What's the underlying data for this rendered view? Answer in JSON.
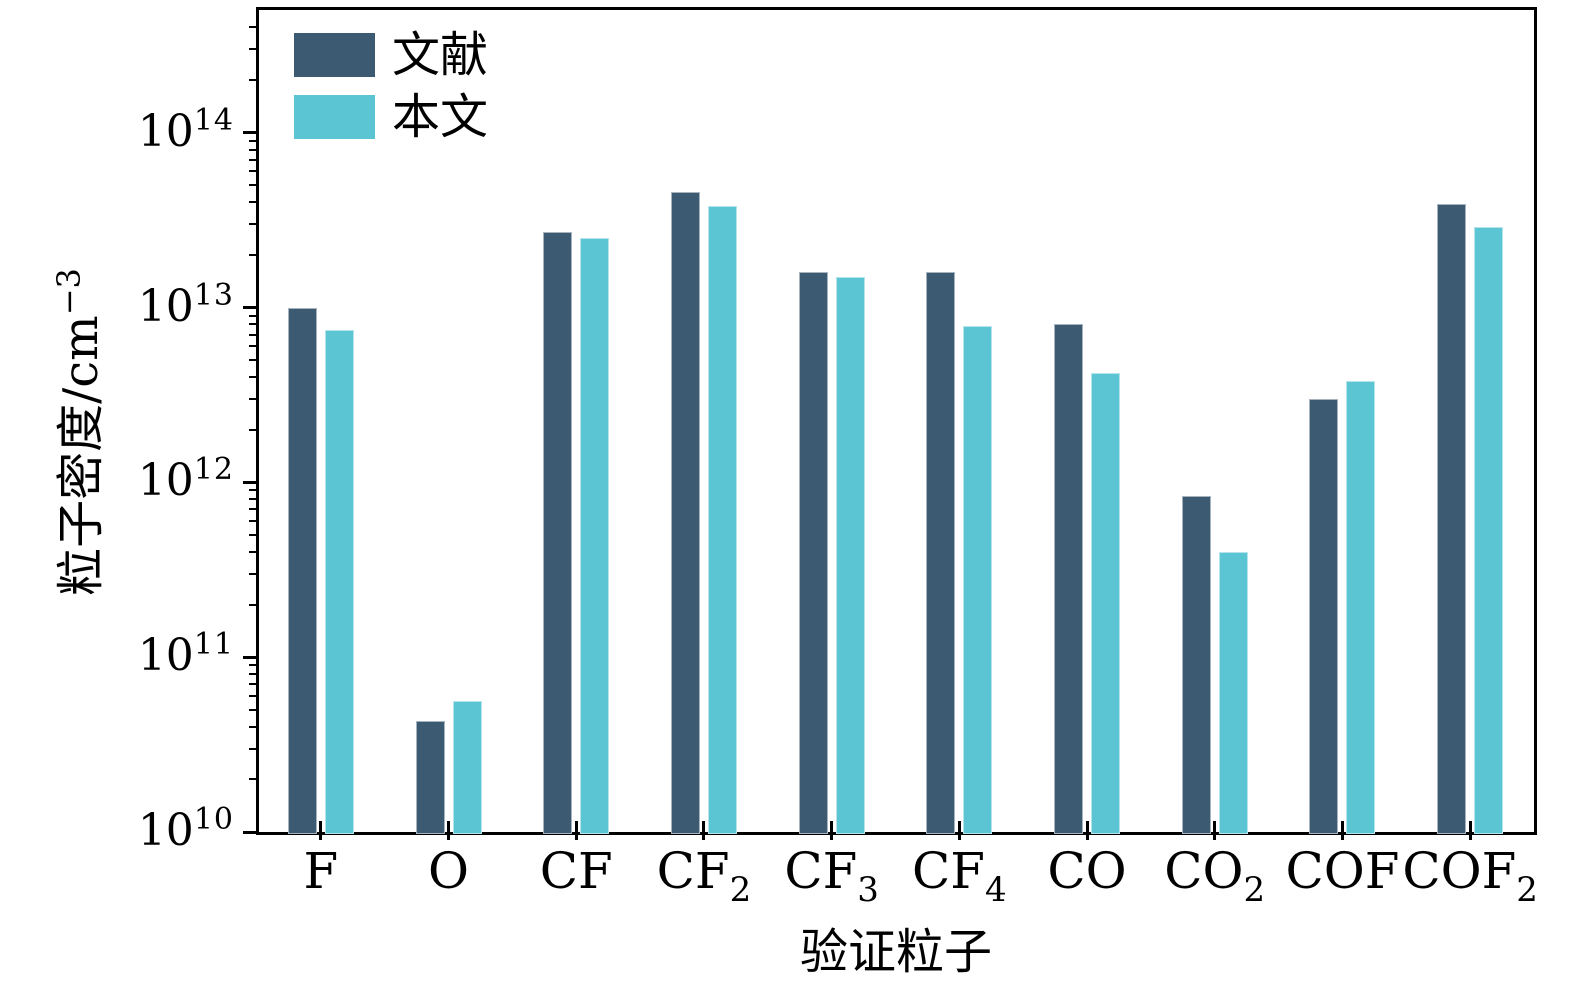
{
  "figure": {
    "ylabel_base": "粒子密度/cm",
    "ylabel_sup": "−3",
    "xlabel": "验证粒子",
    "y_tick_base": "10"
  },
  "legend": [
    {
      "label": "文献",
      "color": "#3d5a73"
    },
    {
      "label": "本文",
      "color": "#5cc5d3"
    }
  ],
  "chart_data": {
    "type": "bar",
    "y_scale": "log",
    "title": "",
    "xlabel": "验证粒子",
    "ylabel": "粒子密度/cm⁻³",
    "categories": [
      "F",
      "O",
      "CF",
      "CF₂",
      "CF₃",
      "CF₄",
      "CO",
      "CO₂",
      "COF",
      "COF₂"
    ],
    "categories_rich": [
      {
        "base": "F",
        "sub": ""
      },
      {
        "base": "O",
        "sub": ""
      },
      {
        "base": "CF",
        "sub": ""
      },
      {
        "base": "CF",
        "sub": "2"
      },
      {
        "base": "CF",
        "sub": "3"
      },
      {
        "base": "CF",
        "sub": "4"
      },
      {
        "base": "CO",
        "sub": ""
      },
      {
        "base": "CO",
        "sub": "2"
      },
      {
        "base": "COF",
        "sub": ""
      },
      {
        "base": "COF",
        "sub": "2"
      }
    ],
    "series": [
      {
        "name": "文献",
        "color": "#3d5a73",
        "values": [
          10000000000000.0,
          43000000000.0,
          27000000000000.0,
          46000000000000.0,
          16000000000000.0,
          16000000000000.0,
          8100000000000.0,
          830000000000.0,
          3000000000000.0,
          39000000000000.0
        ]
      },
      {
        "name": "本文",
        "color": "#5cc5d3",
        "values": [
          7400000000000.0,
          56000000000.0,
          25000000000000.0,
          38000000000000.0,
          15000000000000.0,
          7800000000000.0,
          4200000000000.0,
          400000000000.0,
          3800000000000.0,
          29000000000000.0
        ]
      }
    ],
    "ylim": [
      10000000000.0,
      510000000000000.0
    ],
    "y_tick_exponents": [
      10,
      11,
      12,
      13,
      14
    ],
    "grid": false,
    "legend_position": "upper-left"
  }
}
